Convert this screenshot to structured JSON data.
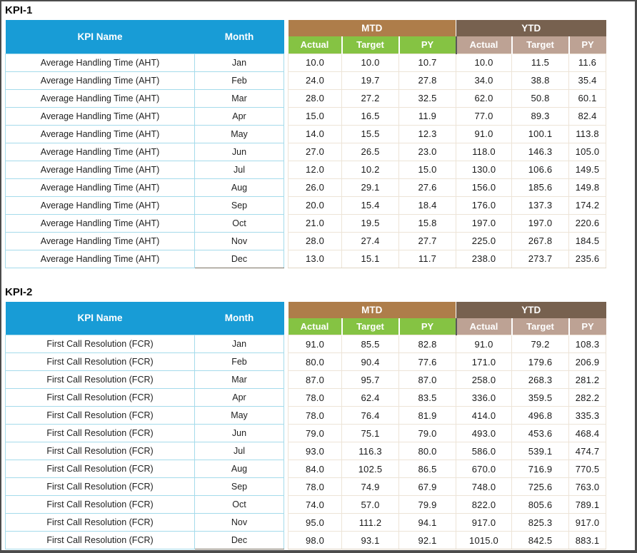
{
  "colors": {
    "header_blue": "#189CD6",
    "mtd_brown": "#AE7D4A",
    "ytd_brown": "#77614F",
    "mtd_sub_green": "#85C343",
    "ytd_sub_taupe": "#BDA294",
    "kpi_border_cyan": "#A5DBEB",
    "value_border_beige": "#EDE4D7",
    "frame_gray": "#4C4C4C"
  },
  "tables": [
    {
      "title": "KPI-1",
      "columns": {
        "kpi": "KPI Name",
        "month": "Month"
      },
      "groups": [
        {
          "label": "MTD",
          "sub": [
            "Actual",
            "Target",
            "PY"
          ]
        },
        {
          "label": "YTD",
          "sub": [
            "Actual",
            "Target",
            "PY"
          ]
        }
      ],
      "rows": [
        {
          "kpi": "Average Handling Time (AHT)",
          "month": "Jan",
          "values": [
            "10.0",
            "10.0",
            "10.7",
            "10.0",
            "11.5",
            "11.6"
          ]
        },
        {
          "kpi": "Average Handling Time (AHT)",
          "month": "Feb",
          "values": [
            "24.0",
            "19.7",
            "27.8",
            "34.0",
            "38.8",
            "35.4"
          ]
        },
        {
          "kpi": "Average Handling Time (AHT)",
          "month": "Mar",
          "values": [
            "28.0",
            "27.2",
            "32.5",
            "62.0",
            "50.8",
            "60.1"
          ]
        },
        {
          "kpi": "Average Handling Time (AHT)",
          "month": "Apr",
          "values": [
            "15.0",
            "16.5",
            "11.9",
            "77.0",
            "89.3",
            "82.4"
          ]
        },
        {
          "kpi": "Average Handling Time (AHT)",
          "month": "May",
          "values": [
            "14.0",
            "15.5",
            "12.3",
            "91.0",
            "100.1",
            "113.8"
          ]
        },
        {
          "kpi": "Average Handling Time (AHT)",
          "month": "Jun",
          "values": [
            "27.0",
            "26.5",
            "23.0",
            "118.0",
            "146.3",
            "105.0"
          ]
        },
        {
          "kpi": "Average Handling Time (AHT)",
          "month": "Jul",
          "values": [
            "12.0",
            "10.2",
            "15.0",
            "130.0",
            "106.6",
            "149.5"
          ]
        },
        {
          "kpi": "Average Handling Time (AHT)",
          "month": "Aug",
          "values": [
            "26.0",
            "29.1",
            "27.6",
            "156.0",
            "185.6",
            "149.8"
          ]
        },
        {
          "kpi": "Average Handling Time (AHT)",
          "month": "Sep",
          "values": [
            "20.0",
            "15.4",
            "18.4",
            "176.0",
            "137.3",
            "174.2"
          ]
        },
        {
          "kpi": "Average Handling Time (AHT)",
          "month": "Oct",
          "values": [
            "21.0",
            "19.5",
            "15.8",
            "197.0",
            "197.0",
            "220.6"
          ]
        },
        {
          "kpi": "Average Handling Time (AHT)",
          "month": "Nov",
          "values": [
            "28.0",
            "27.4",
            "27.7",
            "225.0",
            "267.8",
            "184.5"
          ]
        },
        {
          "kpi": "Average Handling Time (AHT)",
          "month": "Dec",
          "values": [
            "13.0",
            "15.1",
            "11.7",
            "238.0",
            "273.7",
            "235.6"
          ]
        }
      ]
    },
    {
      "title": "KPI-2",
      "columns": {
        "kpi": "KPI Name",
        "month": "Month"
      },
      "groups": [
        {
          "label": "MTD",
          "sub": [
            "Actual",
            "Target",
            "PY"
          ]
        },
        {
          "label": "YTD",
          "sub": [
            "Actual",
            "Target",
            "PY"
          ]
        }
      ],
      "rows": [
        {
          "kpi": "First Call Resolution (FCR)",
          "month": "Jan",
          "values": [
            "91.0",
            "85.5",
            "82.8",
            "91.0",
            "79.2",
            "108.3"
          ]
        },
        {
          "kpi": "First Call Resolution (FCR)",
          "month": "Feb",
          "values": [
            "80.0",
            "90.4",
            "77.6",
            "171.0",
            "179.6",
            "206.9"
          ]
        },
        {
          "kpi": "First Call Resolution (FCR)",
          "month": "Mar",
          "values": [
            "87.0",
            "95.7",
            "87.0",
            "258.0",
            "268.3",
            "281.2"
          ]
        },
        {
          "kpi": "First Call Resolution (FCR)",
          "month": "Apr",
          "values": [
            "78.0",
            "62.4",
            "83.5",
            "336.0",
            "359.5",
            "282.2"
          ]
        },
        {
          "kpi": "First Call Resolution (FCR)",
          "month": "May",
          "values": [
            "78.0",
            "76.4",
            "81.9",
            "414.0",
            "496.8",
            "335.3"
          ]
        },
        {
          "kpi": "First Call Resolution (FCR)",
          "month": "Jun",
          "values": [
            "79.0",
            "75.1",
            "79.0",
            "493.0",
            "453.6",
            "468.4"
          ]
        },
        {
          "kpi": "First Call Resolution (FCR)",
          "month": "Jul",
          "values": [
            "93.0",
            "116.3",
            "80.0",
            "586.0",
            "539.1",
            "474.7"
          ]
        },
        {
          "kpi": "First Call Resolution (FCR)",
          "month": "Aug",
          "values": [
            "84.0",
            "102.5",
            "86.5",
            "670.0",
            "716.9",
            "770.5"
          ]
        },
        {
          "kpi": "First Call Resolution (FCR)",
          "month": "Sep",
          "values": [
            "78.0",
            "74.9",
            "67.9",
            "748.0",
            "725.6",
            "763.0"
          ]
        },
        {
          "kpi": "First Call Resolution (FCR)",
          "month": "Oct",
          "values": [
            "74.0",
            "57.0",
            "79.9",
            "822.0",
            "805.6",
            "789.1"
          ]
        },
        {
          "kpi": "First Call Resolution (FCR)",
          "month": "Nov",
          "values": [
            "95.0",
            "111.2",
            "94.1",
            "917.0",
            "825.3",
            "917.0"
          ]
        },
        {
          "kpi": "First Call Resolution (FCR)",
          "month": "Dec",
          "values": [
            "98.0",
            "93.1",
            "92.1",
            "1015.0",
            "842.5",
            "883.1"
          ]
        }
      ]
    }
  ]
}
